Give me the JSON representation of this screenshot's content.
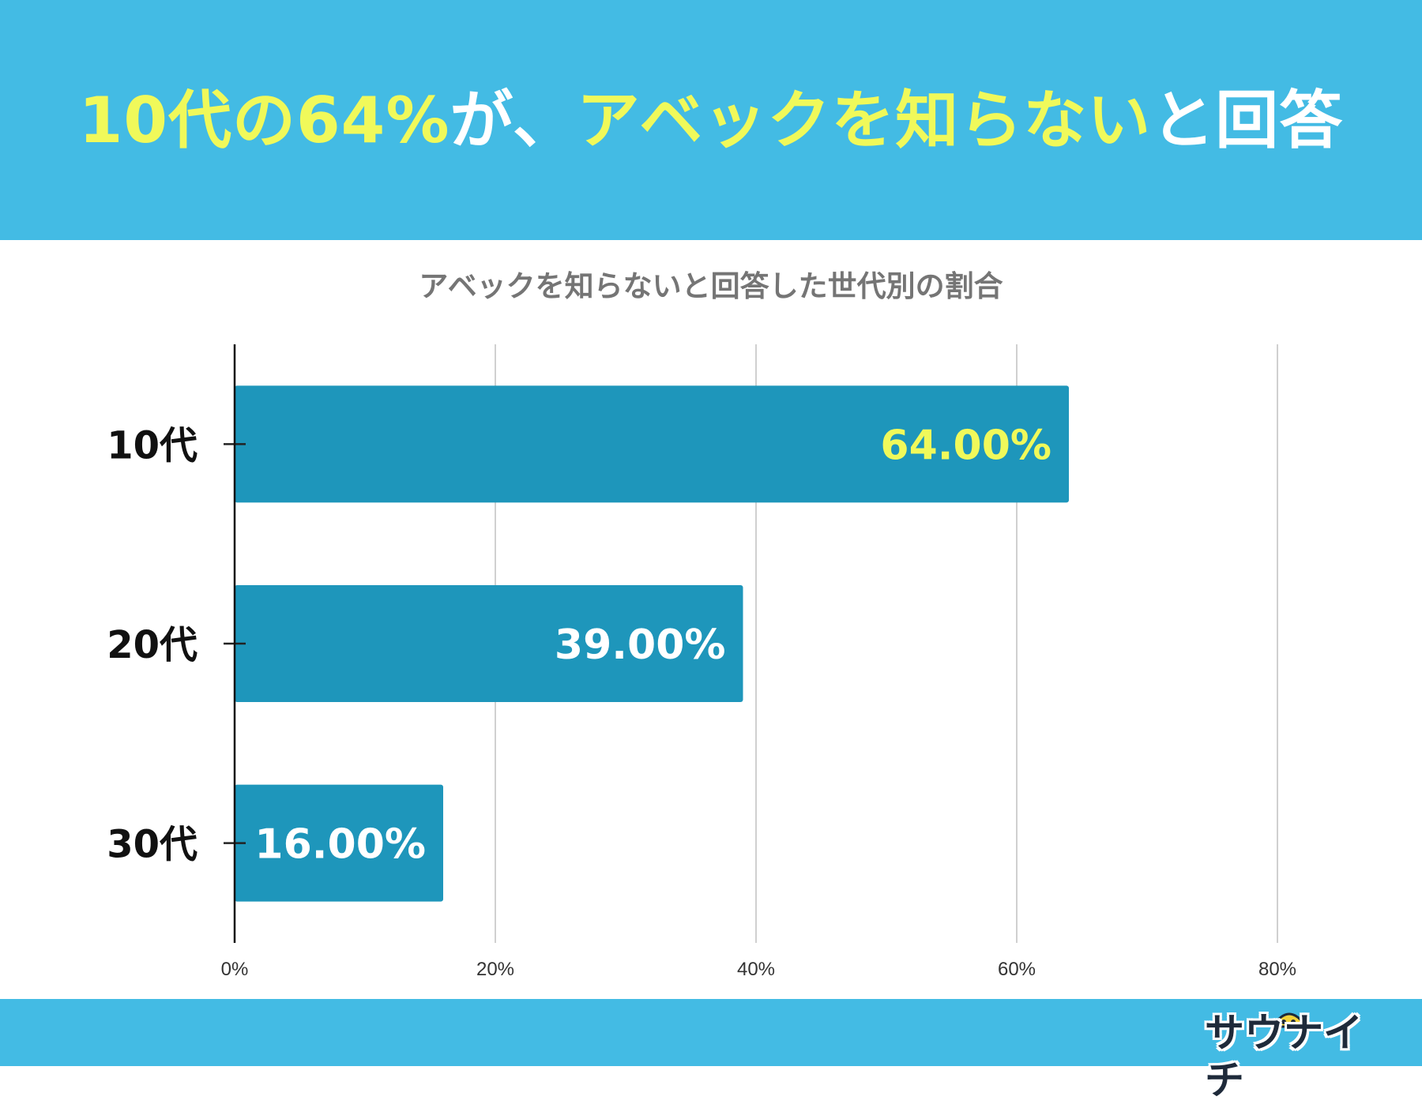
{
  "headline": {
    "part1": "10代の64%",
    "part2": "が、",
    "part3": "アベックを知らない",
    "part4": "と回答"
  },
  "brand": {
    "logo_text": "サウナイチ"
  },
  "colors": {
    "banner": "#43bbe4",
    "headline_accent": "#f0f95a",
    "bar": "#1e96bb",
    "label_highlight": "#f0f95a",
    "label_normal": "#ffffff"
  },
  "chart_data": {
    "type": "bar",
    "orientation": "horizontal",
    "title": "アベックを知らないと回答した世代別の割合",
    "categories": [
      "10代",
      "20代",
      "30代"
    ],
    "values": [
      64,
      39,
      16
    ],
    "value_labels": [
      "64.00%",
      "39.00%",
      "16.00%"
    ],
    "x_ticks": [
      0,
      20,
      40,
      60,
      80
    ],
    "x_tick_labels": [
      "0%",
      "20%",
      "40%",
      "60%",
      "80%"
    ],
    "xlim": [
      0,
      80
    ],
    "grid": true,
    "legend": "none"
  }
}
